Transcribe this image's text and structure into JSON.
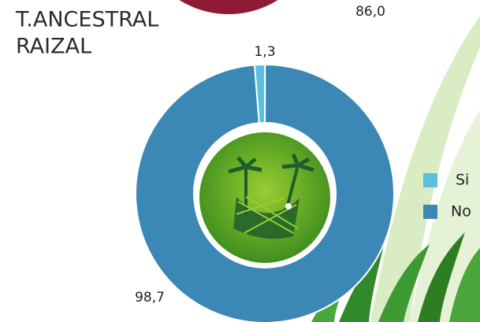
{
  "chart_data": [
    {
      "type": "pie",
      "values": [
        86.0
      ],
      "value_labels": [
        "86,0"
      ],
      "colors": [
        "#8e1b33"
      ]
    },
    {
      "type": "donut",
      "title_lines": [
        "T.ANCESTRAL",
        "RAIZAL"
      ],
      "categories": [
        "Si",
        "No"
      ],
      "values": [
        1.3,
        98.7
      ],
      "value_labels": [
        "1,3",
        "98,7"
      ],
      "colors": [
        "#5bc0de",
        "#3b87b5"
      ],
      "legend": "right"
    }
  ]
}
